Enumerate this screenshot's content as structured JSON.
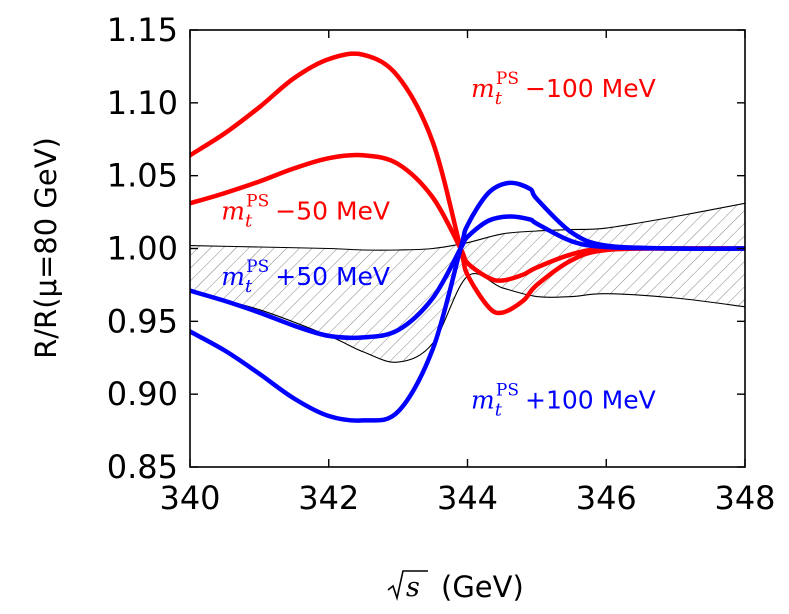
{
  "chart_data": {
    "type": "line",
    "xlabel": "(GeV)",
    "xlabel_radicand": "s",
    "ylabel": "R/R(μ=80 GeV)",
    "xlim": [
      340,
      348
    ],
    "ylim": [
      0.85,
      1.15
    ],
    "x_ticks": [
      "340",
      "342",
      "344",
      "346",
      "348"
    ],
    "y_ticks": [
      "0.85",
      "0.90",
      "0.95",
      "1.00",
      "1.05",
      "1.10",
      "1.15"
    ],
    "grid": false,
    "band": {
      "fill": "diagonal-hatch",
      "x": [
        340,
        341,
        342,
        342.5,
        343,
        343.5,
        344,
        344.5,
        345,
        345.5,
        346,
        347,
        348
      ],
      "upper": [
        1.002,
        1.001,
        1.0,
        0.999,
        0.999,
        1.0,
        1.004,
        1.01,
        1.012,
        1.013,
        1.014,
        1.022,
        1.031
      ],
      "lower": [
        0.97,
        0.958,
        0.94,
        0.929,
        0.922,
        0.935,
        0.981,
        0.973,
        0.967,
        0.967,
        0.969,
        0.966,
        0.96
      ]
    },
    "series": [
      {
        "color": "#ff0000",
        "x": [
          340,
          340.5,
          341,
          341.5,
          342,
          342.5,
          343,
          343.5,
          343.9,
          344,
          344.3,
          344.5,
          344.8,
          345,
          345.5,
          346,
          347,
          348
        ],
        "values": [
          1.064,
          1.079,
          1.097,
          1.117,
          1.13,
          1.133,
          1.118,
          1.073,
          1.0,
          0.982,
          0.96,
          0.956,
          0.964,
          0.975,
          0.992,
          0.999,
          1.0,
          1.0
        ]
      },
      {
        "color": "#ff0000",
        "x": [
          340,
          340.5,
          341,
          341.5,
          342,
          342.5,
          343,
          343.5,
          343.9,
          344,
          344.3,
          344.5,
          344.8,
          345,
          345.5,
          346,
          347,
          348
        ],
        "values": [
          1.031,
          1.038,
          1.046,
          1.055,
          1.062,
          1.064,
          1.058,
          1.035,
          1.0,
          0.99,
          0.98,
          0.978,
          0.982,
          0.987,
          0.996,
          1.0,
          1.0,
          1.0
        ]
      },
      {
        "color": "#0000ff",
        "x": [
          340,
          340.5,
          341,
          341.5,
          342,
          342.5,
          343,
          343.5,
          343.9,
          344,
          344.3,
          344.6,
          344.9,
          345,
          345.5,
          346,
          347,
          348
        ],
        "values": [
          0.971,
          0.964,
          0.956,
          0.947,
          0.94,
          0.939,
          0.944,
          0.966,
          1.0,
          1.008,
          1.019,
          1.022,
          1.02,
          1.017,
          1.005,
          1.001,
          1.0,
          1.0
        ]
      },
      {
        "color": "#0000ff",
        "x": [
          340,
          340.5,
          341,
          341.5,
          342,
          342.5,
          343,
          343.5,
          343.9,
          344,
          344.3,
          344.6,
          344.9,
          345,
          345.5,
          346,
          347,
          348
        ],
        "values": [
          0.943,
          0.93,
          0.914,
          0.897,
          0.885,
          0.882,
          0.888,
          0.931,
          1.0,
          1.016,
          1.038,
          1.045,
          1.041,
          1.034,
          1.011,
          1.002,
          1.0,
          1.0
        ]
      }
    ],
    "annotations": [
      {
        "var": "m",
        "sub": "t",
        "sup": "PS",
        "text": "−100 MeV",
        "color": "#ff0000",
        "x": 344.05,
        "y": 1.104
      },
      {
        "var": "m",
        "sub": "t",
        "sup": "PS",
        "text": "−50 MeV",
        "color": "#ff0000",
        "x": 340.45,
        "y": 1.02
      },
      {
        "var": "m",
        "sub": "t",
        "sup": "PS",
        "text": "+50 MeV",
        "color": "#0000ff",
        "x": 340.45,
        "y": 0.975
      },
      {
        "var": "m",
        "sub": "t",
        "sup": "PS",
        "text": "+100 MeV",
        "color": "#0000ff",
        "x": 344.05,
        "y": 0.89
      }
    ]
  }
}
